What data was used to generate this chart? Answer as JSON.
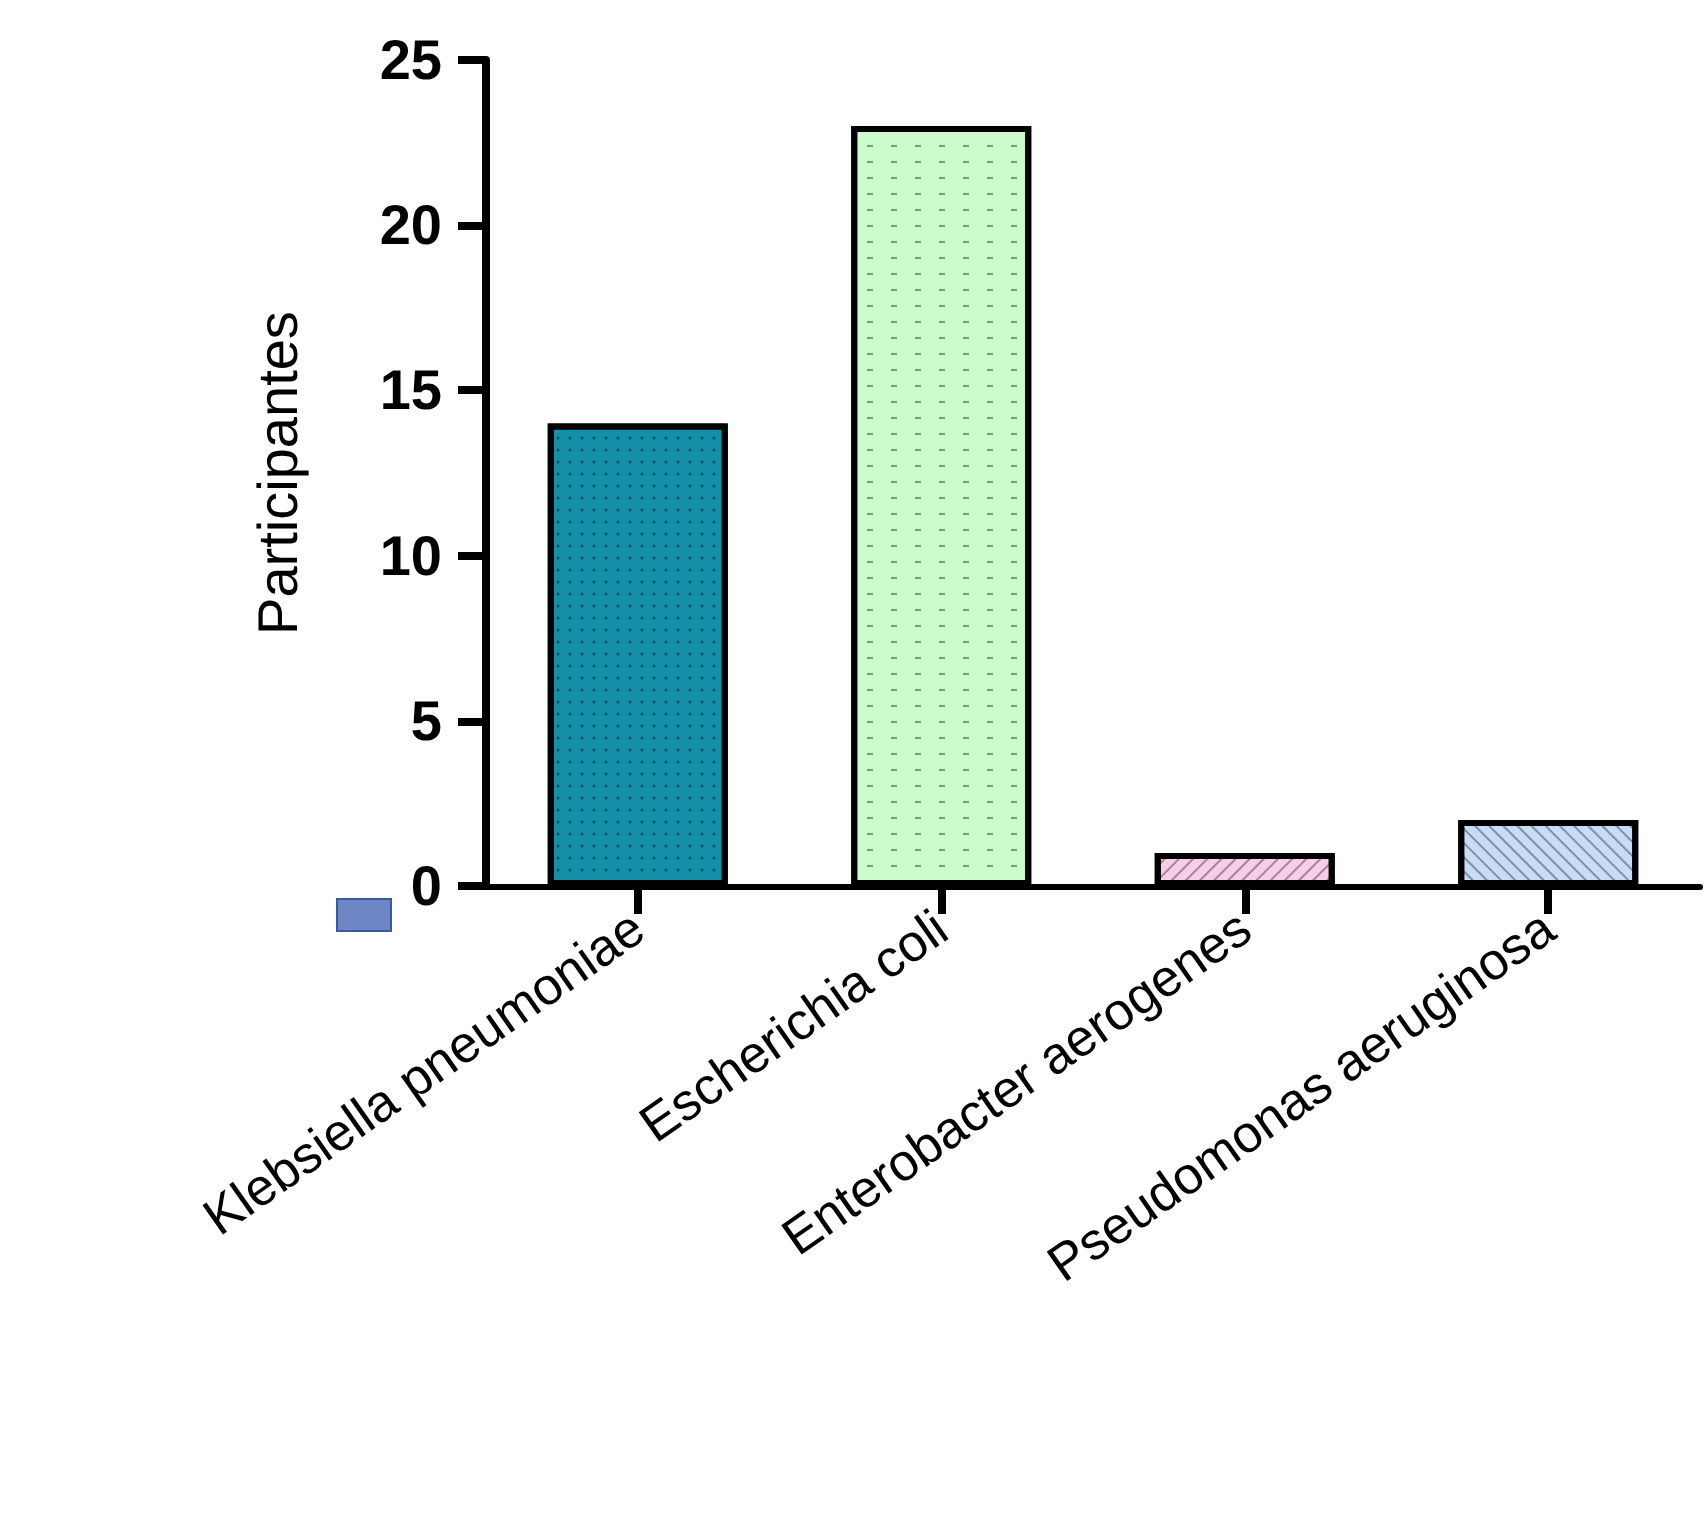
{
  "chart_data": {
    "type": "bar",
    "ylabel": "Participantes",
    "categories": [
      "Klebsiella pneumoniae",
      "Escherichia coli",
      "Enterobacter aerogenes",
      "Pseudomonas aeruginosa"
    ],
    "values": [
      14,
      23,
      1,
      2
    ],
    "colors": [
      "#148fa8",
      "#ccfccc",
      "#f7cdea",
      "#c8dcf5"
    ],
    "ylim": [
      0,
      25
    ],
    "yticks": [
      0,
      5,
      10,
      15,
      20,
      25
    ],
    "grid": false
  }
}
